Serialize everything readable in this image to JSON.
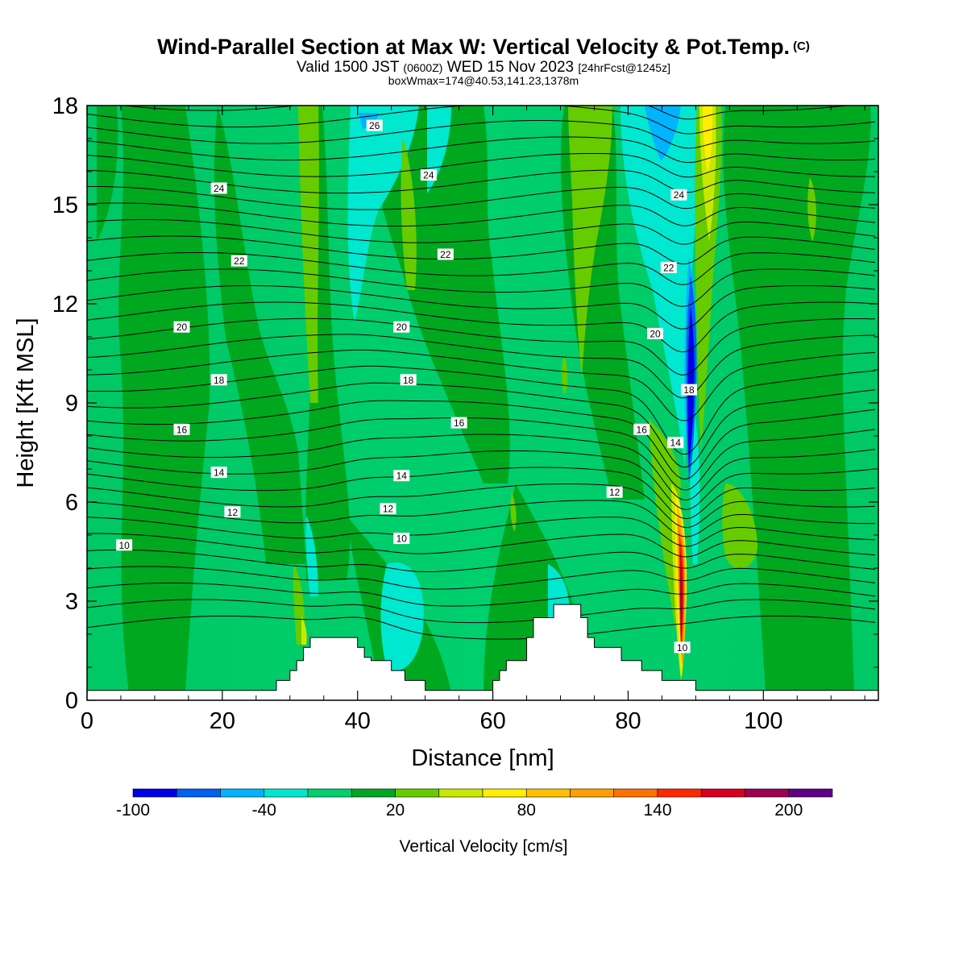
{
  "title": {
    "main": "Wind-Parallel Section at Max W: Vertical Velocity & Pot.Temp.",
    "copyright": "(C)",
    "valid_prefix": "Valid 1500 JST",
    "valid_utc": "(0600Z)",
    "valid_date": "WED 15 Nov 2023",
    "forecast": "[24hrFcst@1245z]",
    "boxwmax": "boxWmax=174@40.53,141.23,1378m"
  },
  "chart_data": {
    "type": "heatmap",
    "title": "Wind-Parallel Section at Max W: Vertical Velocity & Pot.Temp.",
    "xlabel": "Distance [nm]",
    "ylabel": "Height [Kft MSL]",
    "xlim": [
      0,
      117
    ],
    "ylim": [
      0,
      18
    ],
    "x_ticks": [
      0,
      20,
      40,
      60,
      80,
      100
    ],
    "y_ticks": [
      0,
      3,
      6,
      9,
      12,
      15,
      18
    ],
    "fill_variable": "Vertical Velocity [cm/s]",
    "contour_variable": "Potential Temperature",
    "colorbar": {
      "label": "Vertical Velocity [cm/s]",
      "levels": [
        -100,
        -80,
        -60,
        -40,
        -20,
        0,
        20,
        40,
        60,
        80,
        100,
        120,
        140,
        160,
        180,
        200,
        220
      ],
      "tick_labels": [
        -100,
        -40,
        20,
        80,
        140,
        200
      ],
      "colors": [
        "#0000e8",
        "#0060f0",
        "#00b4ff",
        "#00e8d0",
        "#00d070",
        "#00a820",
        "#66cc00",
        "#c8e800",
        "#ffee00",
        "#ffc000",
        "#ffa000",
        "#ff7000",
        "#ff2800",
        "#d80020",
        "#a00050",
        "#600088"
      ]
    },
    "max_w": {
      "value": 174,
      "x": 88.3,
      "y": 3.5
    },
    "contour_labels": [
      {
        "text": "26",
        "x": 42.5,
        "y": 17.4
      },
      {
        "text": "24",
        "x": 19.5,
        "y": 15.5
      },
      {
        "text": "24",
        "x": 50.5,
        "y": 15.9
      },
      {
        "text": "24",
        "x": 87.5,
        "y": 15.3
      },
      {
        "text": "22",
        "x": 22.5,
        "y": 13.3
      },
      {
        "text": "22",
        "x": 53.0,
        "y": 13.5
      },
      {
        "text": "22",
        "x": 86.0,
        "y": 13.1
      },
      {
        "text": "20",
        "x": 14.0,
        "y": 11.3
      },
      {
        "text": "20",
        "x": 46.5,
        "y": 11.3
      },
      {
        "text": "20",
        "x": 84.0,
        "y": 11.1
      },
      {
        "text": "18",
        "x": 19.5,
        "y": 9.7
      },
      {
        "text": "18",
        "x": 47.5,
        "y": 9.7
      },
      {
        "text": "18",
        "x": 89.0,
        "y": 9.4
      },
      {
        "text": "16",
        "x": 14.0,
        "y": 8.2
      },
      {
        "text": "16",
        "x": 55.0,
        "y": 8.4
      },
      {
        "text": "16",
        "x": 82.0,
        "y": 8.2
      },
      {
        "text": "14",
        "x": 19.5,
        "y": 6.9
      },
      {
        "text": "14",
        "x": 46.5,
        "y": 6.8
      },
      {
        "text": "14",
        "x": 87.0,
        "y": 7.8
      },
      {
        "text": "12",
        "x": 21.5,
        "y": 5.7
      },
      {
        "text": "12",
        "x": 44.5,
        "y": 5.8
      },
      {
        "text": "12",
        "x": 78.0,
        "y": 6.3
      },
      {
        "text": "10",
        "x": 5.5,
        "y": 4.7
      },
      {
        "text": "10",
        "x": 46.5,
        "y": 4.9
      },
      {
        "text": "10",
        "x": 88.0,
        "y": 1.6
      }
    ],
    "terrain": {
      "x": [
        0,
        28,
        28,
        30,
        30,
        31,
        31,
        32,
        32,
        33,
        33,
        40,
        40,
        41,
        41,
        42,
        42,
        45,
        45,
        47,
        47,
        50,
        50,
        60,
        60,
        61,
        61,
        62,
        62,
        65,
        65,
        66,
        66,
        69,
        69,
        73,
        73,
        74,
        74,
        75,
        75,
        79,
        79,
        82,
        82,
        85,
        85,
        90,
        90,
        117
      ],
      "height": [
        0.3,
        0.3,
        0.6,
        0.6,
        0.9,
        0.9,
        1.2,
        1.2,
        1.6,
        1.6,
        1.9,
        1.9,
        1.6,
        1.6,
        1.3,
        1.3,
        1.2,
        1.2,
        0.9,
        0.9,
        0.6,
        0.6,
        0.3,
        0.3,
        0.6,
        0.6,
        0.9,
        0.9,
        1.2,
        1.2,
        1.9,
        1.9,
        2.5,
        2.5,
        2.9,
        2.9,
        2.5,
        2.5,
        1.9,
        1.9,
        1.6,
        1.6,
        1.2,
        1.2,
        0.9,
        0.9,
        0.6,
        0.6,
        0.3,
        0.3
      ]
    }
  },
  "axes": {
    "xlabel": "Distance [nm]",
    "ylabel": "Height [Kft MSL]"
  },
  "colorbar_title": "Vertical Velocity [cm/s]"
}
